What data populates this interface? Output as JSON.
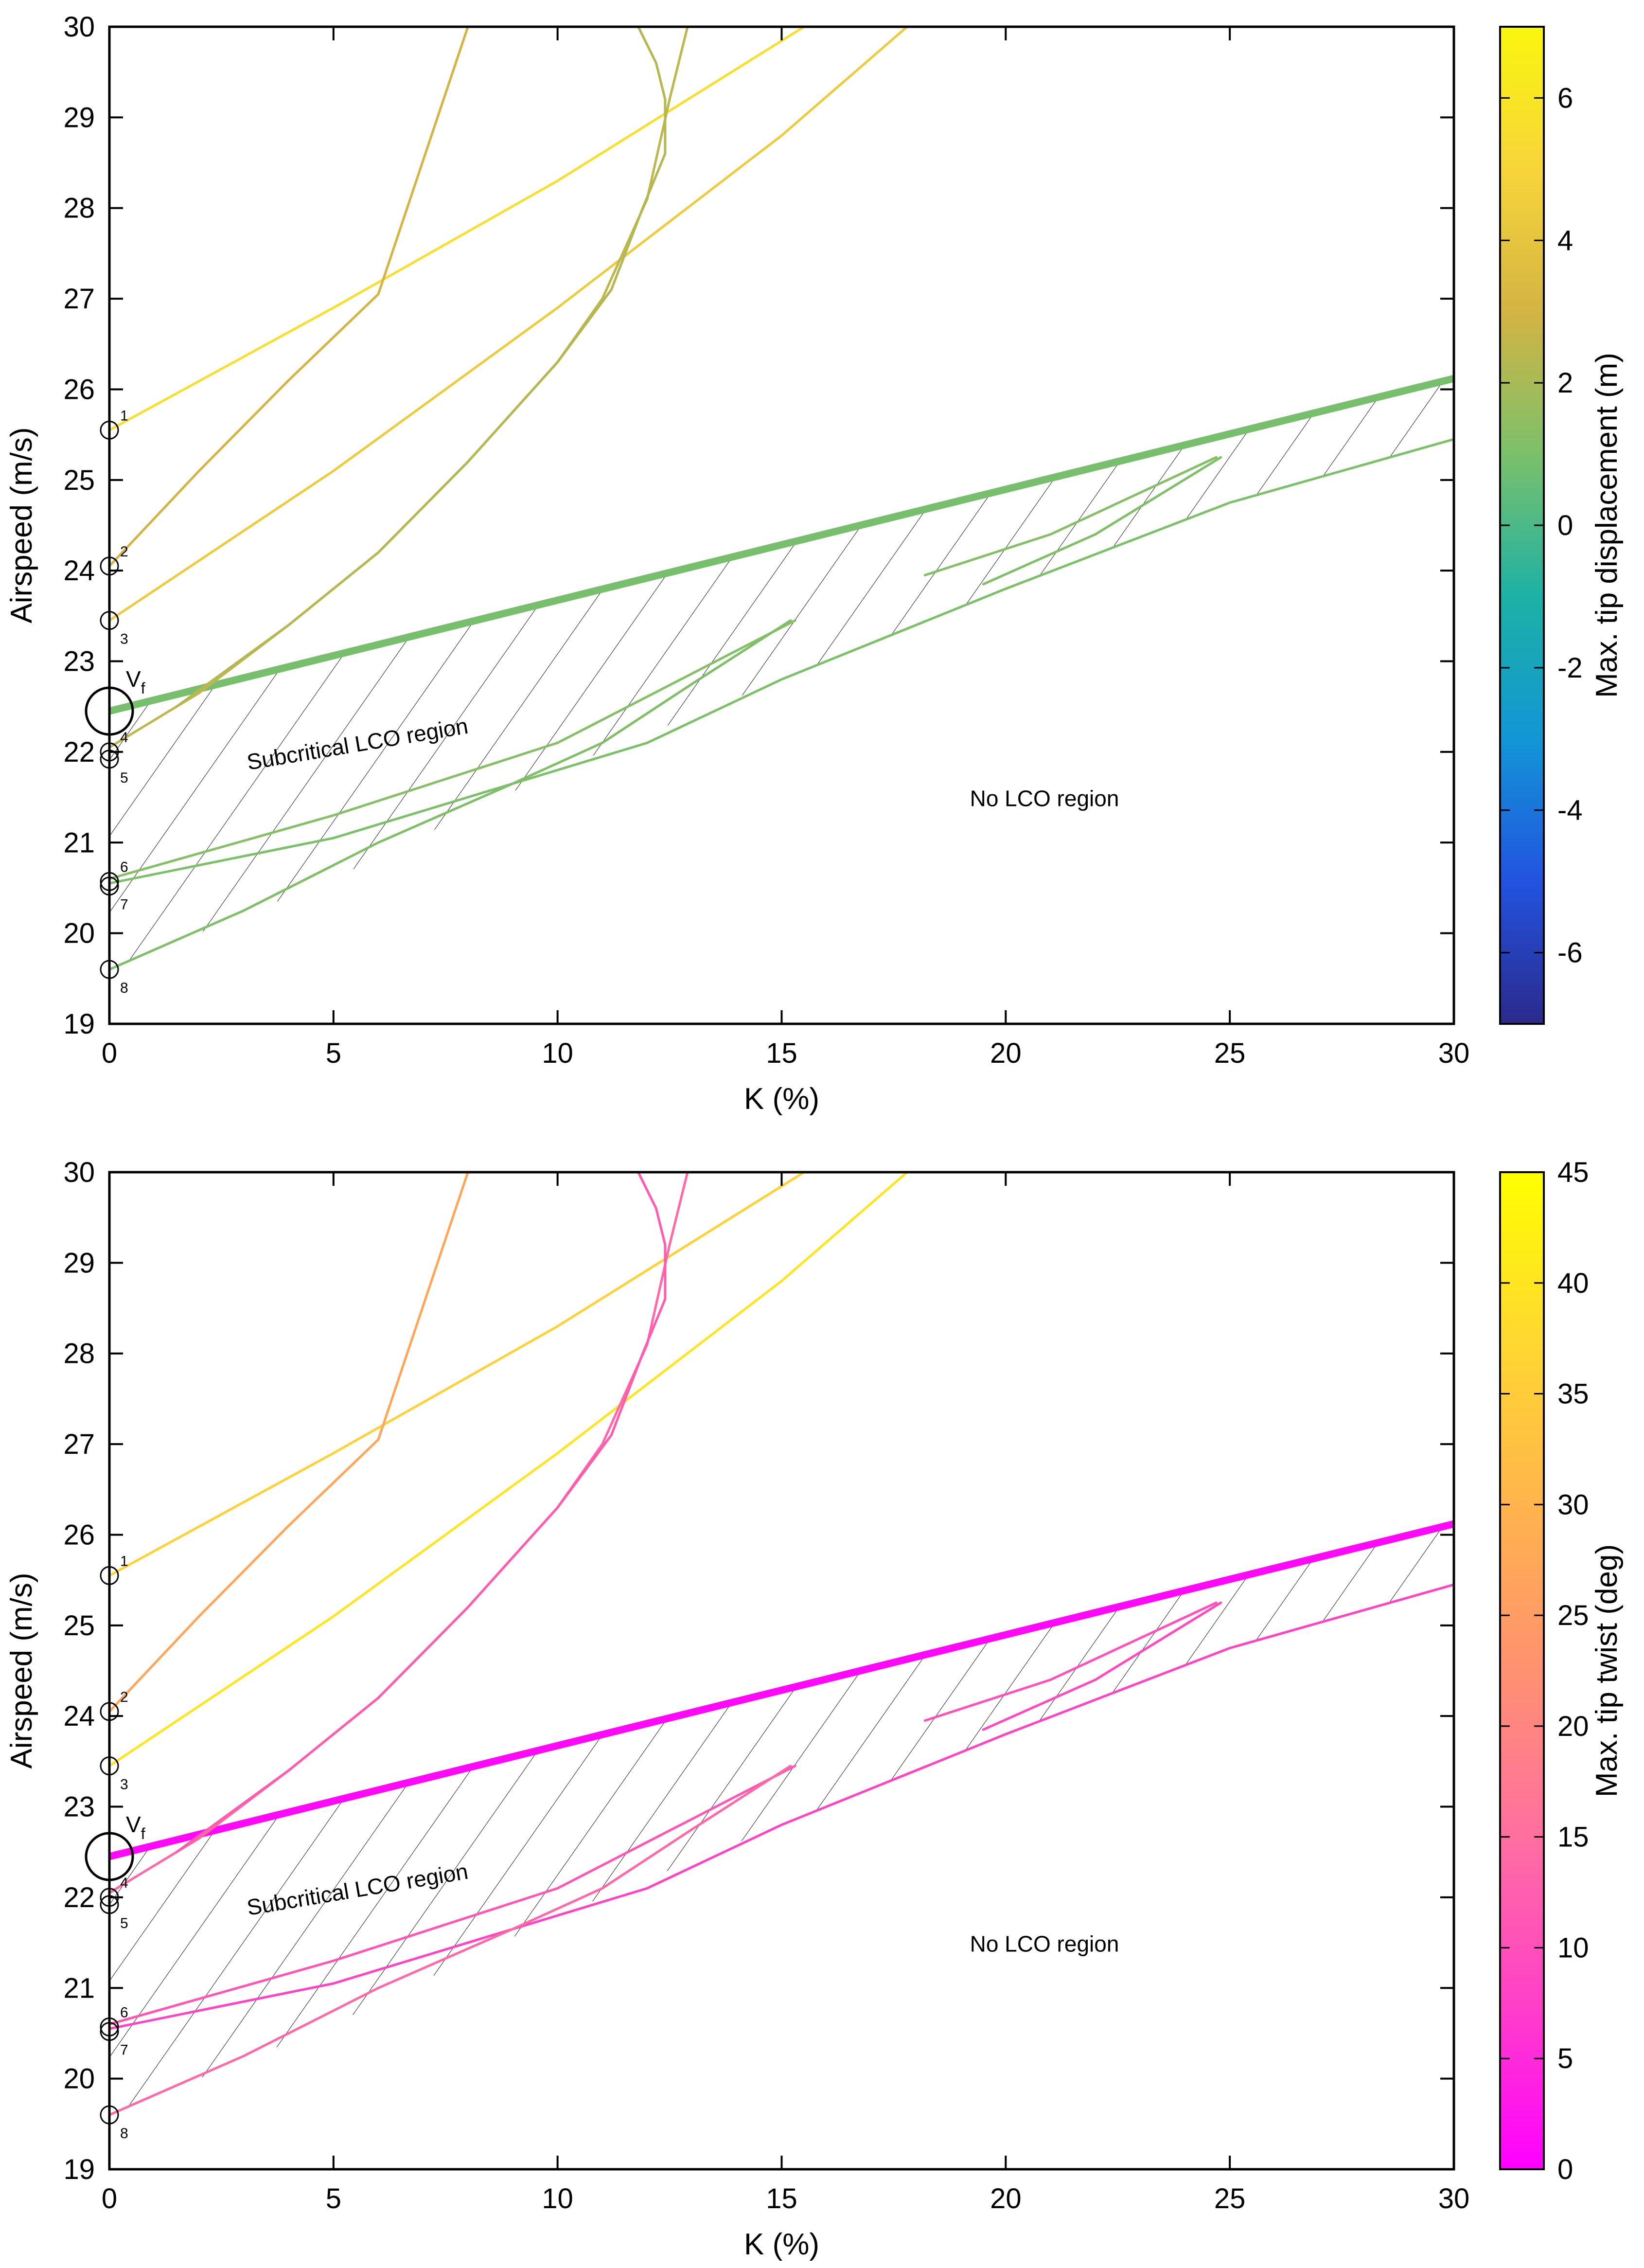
{
  "chart_data": [
    {
      "type": "line",
      "panel": "top",
      "xlabel": "K (%)",
      "ylabel": "Airspeed (m/s)",
      "xlim": [
        0,
        30
      ],
      "ylim": [
        19,
        30
      ],
      "xticks": [
        0,
        5,
        10,
        15,
        20,
        25,
        30
      ],
      "yticks": [
        19,
        20,
        21,
        22,
        23,
        24,
        25,
        26,
        27,
        28,
        29,
        30
      ],
      "colorbar": {
        "label": "Max. tip displacement (m)",
        "range": [
          -7,
          7
        ],
        "ticks": [
          -6,
          -4,
          -2,
          0,
          2,
          4,
          6
        ],
        "colormap": [
          "#2b2a8c",
          "#2253e0",
          "#1296d5",
          "#1db1a5",
          "#7cc06a",
          "#d4b443",
          "#f7d53a",
          "#f9f60e"
        ]
      },
      "annotations": {
        "subcritical_label": "Subcritical LCO region",
        "no_lco_label": "No LCO region",
        "vf_main": "V",
        "vf_sub": "f",
        "vf_point": [
          0,
          22.45
        ]
      },
      "shaded_region": {
        "upper": [
          [
            0,
            22.45
          ],
          [
            30,
            26.12
          ]
        ],
        "lower": [
          [
            0,
            19.6
          ],
          [
            5,
            20.6
          ],
          [
            10,
            21.8
          ],
          [
            15,
            22.8
          ],
          [
            20,
            23.8
          ],
          [
            25,
            24.75
          ],
          [
            30,
            25.45
          ]
        ]
      },
      "series": [
        {
          "name": "neutral-stability",
          "value": 0.9,
          "thick": true,
          "points": [
            [
              0,
              22.45
            ],
            [
              30,
              26.12
            ]
          ]
        },
        {
          "name": "branch-1",
          "value": 5.6,
          "points": [
            [
              0,
              25.55
            ],
            [
              5,
              26.9
            ],
            [
              10,
              28.3
            ],
            [
              15.5,
              30
            ]
          ]
        },
        {
          "name": "branch-2",
          "value": 3.0,
          "points": [
            [
              0,
              24.05
            ],
            [
              2,
              25.1
            ],
            [
              4,
              26.1
            ],
            [
              6,
              27.05
            ],
            [
              8,
              30
            ]
          ]
        },
        {
          "name": "branch-3",
          "value": 4.4,
          "points": [
            [
              0,
              23.45
            ],
            [
              5,
              25.1
            ],
            [
              10,
              26.9
            ],
            [
              15,
              28.8
            ],
            [
              17.8,
              30
            ]
          ]
        },
        {
          "name": "branch-4",
          "value": 2.5,
          "points": [
            [
              0,
              22.05
            ],
            [
              2,
              22.65
            ],
            [
              4,
              23.4
            ],
            [
              6,
              24.2
            ],
            [
              8,
              25.2
            ],
            [
              10,
              26.3
            ],
            [
              11,
              27.0
            ],
            [
              12,
              28.1
            ],
            [
              12.5,
              29.2
            ],
            [
              12.9,
              30
            ]
          ]
        },
        {
          "name": "branch-5",
          "value": 2.3,
          "points": [
            [
              1.5,
              22.5
            ],
            [
              4,
              23.4
            ],
            [
              6,
              24.2
            ],
            [
              8,
              25.2
            ],
            [
              10,
              26.3
            ],
            [
              11.2,
              27.1
            ],
            [
              11.9,
              28.0
            ],
            [
              12.4,
              28.6
            ],
            [
              12.4,
              29.2
            ],
            [
              12.2,
              29.6
            ],
            [
              11.8,
              30
            ]
          ]
        },
        {
          "name": "branch-6",
          "value": 1.2,
          "points": [
            [
              0,
              20.6
            ],
            [
              5,
              21.3
            ],
            [
              10,
              22.1
            ],
            [
              15.3,
              23.45
            ]
          ]
        },
        {
          "name": "branch-7",
          "value": 1.0,
          "points": [
            [
              0,
              20.55
            ],
            [
              5,
              21.05
            ],
            [
              10,
              21.8
            ],
            [
              12,
              22.1
            ],
            [
              15,
              22.8
            ],
            [
              20,
              23.8
            ],
            [
              25,
              24.75
            ],
            [
              30,
              25.45
            ]
          ]
        },
        {
          "name": "branch-8",
          "value": 1.1,
          "points": [
            [
              0,
              19.6
            ],
            [
              3,
              20.25
            ],
            [
              6,
              21.0
            ],
            [
              9,
              21.65
            ],
            [
              11,
              22.1
            ],
            [
              13,
              22.75
            ],
            [
              15.2,
              23.45
            ]
          ]
        },
        {
          "name": "branch-9",
          "value": 1.2,
          "points": [
            [
              18.2,
              23.95
            ],
            [
              21,
              24.4
            ],
            [
              24.7,
              25.25
            ]
          ]
        },
        {
          "name": "branch-10",
          "value": 1.1,
          "points": [
            [
              19.5,
              23.85
            ],
            [
              22,
              24.4
            ],
            [
              24.8,
              25.25
            ]
          ]
        }
      ],
      "markers": [
        {
          "label": "1",
          "y": 25.55
        },
        {
          "label": "2",
          "y": 24.05
        },
        {
          "label": "3",
          "y": 23.45
        },
        {
          "label": "4",
          "y": 22.0
        },
        {
          "label": "5",
          "y": 21.92
        },
        {
          "label": "6",
          "y": 20.57
        },
        {
          "label": "7",
          "y": 20.52
        },
        {
          "label": "8",
          "y": 19.6
        }
      ]
    },
    {
      "type": "line",
      "panel": "bottom",
      "xlabel": "K (%)",
      "ylabel": "Airspeed (m/s)",
      "xlim": [
        0,
        30
      ],
      "ylim": [
        19,
        30
      ],
      "xticks": [
        0,
        5,
        10,
        15,
        20,
        25,
        30
      ],
      "yticks": [
        19,
        20,
        21,
        22,
        23,
        24,
        25,
        26,
        27,
        28,
        29,
        30
      ],
      "colorbar": {
        "label": "Max. tip twist (deg)",
        "range": [
          0,
          45
        ],
        "ticks": [
          0,
          5,
          10,
          15,
          20,
          25,
          30,
          35,
          40,
          45
        ],
        "colormap": [
          "#ff00ff",
          "#ff40c8",
          "#ff6fa0",
          "#ff9170",
          "#ffb44c",
          "#ffd830",
          "#ffff00"
        ]
      },
      "annotations": {
        "subcritical_label": "Subcritical LCO region",
        "no_lco_label": "No LCO region",
        "vf_main": "V",
        "vf_sub": "f",
        "vf_point": [
          0,
          22.45
        ]
      },
      "shaded_region": {
        "upper": [
          [
            0,
            22.45
          ],
          [
            30,
            26.12
          ]
        ],
        "lower": [
          [
            0,
            19.6
          ],
          [
            5,
            20.6
          ],
          [
            10,
            21.8
          ],
          [
            15,
            22.8
          ],
          [
            20,
            23.8
          ],
          [
            25,
            24.75
          ],
          [
            30,
            25.45
          ]
        ]
      },
      "series": [
        {
          "name": "neutral-stability",
          "value": 1,
          "thick": true,
          "points": [
            [
              0,
              22.45
            ],
            [
              30,
              26.12
            ]
          ]
        },
        {
          "name": "branch-1",
          "value": 36,
          "points": [
            [
              0,
              25.55
            ],
            [
              5,
              26.9
            ],
            [
              10,
              28.3
            ],
            [
              15.5,
              30
            ]
          ]
        },
        {
          "name": "branch-2",
          "value": 27,
          "points": [
            [
              0,
              24.05
            ],
            [
              2,
              25.1
            ],
            [
              4,
              26.1
            ],
            [
              6,
              27.05
            ],
            [
              8,
              30
            ]
          ]
        },
        {
          "name": "branch-3",
          "value": 40,
          "points": [
            [
              0,
              23.45
            ],
            [
              5,
              25.1
            ],
            [
              10,
              26.9
            ],
            [
              15,
              28.8
            ],
            [
              17.8,
              30
            ]
          ]
        },
        {
          "name": "branch-4",
          "value": 14,
          "points": [
            [
              0,
              22.05
            ],
            [
              2,
              22.65
            ],
            [
              4,
              23.4
            ],
            [
              6,
              24.2
            ],
            [
              8,
              25.2
            ],
            [
              10,
              26.3
            ],
            [
              11,
              27.0
            ],
            [
              12,
              28.1
            ],
            [
              12.5,
              29.2
            ],
            [
              12.9,
              30
            ]
          ]
        },
        {
          "name": "branch-5",
          "value": 12,
          "points": [
            [
              1.5,
              22.5
            ],
            [
              4,
              23.4
            ],
            [
              6,
              24.2
            ],
            [
              8,
              25.2
            ],
            [
              10,
              26.3
            ],
            [
              11.2,
              27.1
            ],
            [
              11.9,
              28.0
            ],
            [
              12.4,
              28.6
            ],
            [
              12.4,
              29.2
            ],
            [
              12.2,
              29.6
            ],
            [
              11.8,
              30
            ]
          ]
        },
        {
          "name": "branch-6",
          "value": 11,
          "points": [
            [
              0,
              20.6
            ],
            [
              5,
              21.3
            ],
            [
              10,
              22.1
            ],
            [
              15.3,
              23.45
            ]
          ]
        },
        {
          "name": "branch-7",
          "value": 8,
          "points": [
            [
              0,
              20.55
            ],
            [
              5,
              21.05
            ],
            [
              10,
              21.8
            ],
            [
              12,
              22.1
            ],
            [
              15,
              22.8
            ],
            [
              20,
              23.8
            ],
            [
              25,
              24.75
            ],
            [
              30,
              25.45
            ]
          ]
        },
        {
          "name": "branch-8",
          "value": 14,
          "points": [
            [
              0,
              19.6
            ],
            [
              3,
              20.25
            ],
            [
              6,
              21.0
            ],
            [
              9,
              21.65
            ],
            [
              11,
              22.1
            ],
            [
              13,
              22.75
            ],
            [
              15.2,
              23.45
            ]
          ]
        },
        {
          "name": "branch-9",
          "value": 10,
          "points": [
            [
              18.2,
              23.95
            ],
            [
              21,
              24.4
            ],
            [
              24.7,
              25.25
            ]
          ]
        },
        {
          "name": "branch-10",
          "value": 9,
          "points": [
            [
              19.5,
              23.85
            ],
            [
              22,
              24.4
            ],
            [
              24.8,
              25.25
            ]
          ]
        }
      ],
      "markers": [
        {
          "label": "1",
          "y": 25.55
        },
        {
          "label": "2",
          "y": 24.05
        },
        {
          "label": "3",
          "y": 23.45
        },
        {
          "label": "4",
          "y": 22.0
        },
        {
          "label": "5",
          "y": 21.92
        },
        {
          "label": "6",
          "y": 20.57
        },
        {
          "label": "7",
          "y": 20.52
        },
        {
          "label": "8",
          "y": 19.6
        }
      ]
    }
  ]
}
